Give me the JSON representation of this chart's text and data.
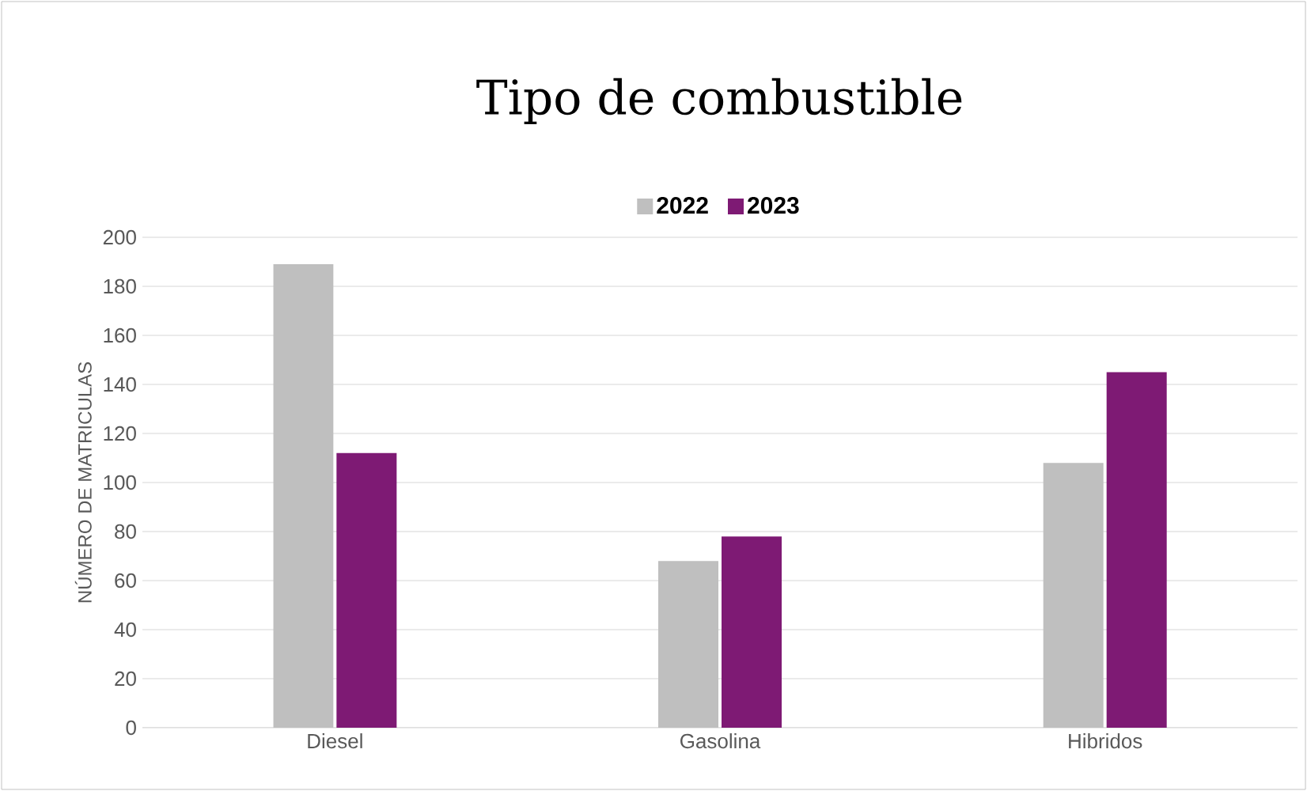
{
  "chart_data": {
    "type": "bar",
    "title": "Tipo de combustible",
    "ylabel": "NÚMERO DE MATRICULAS",
    "categories": [
      "Diesel",
      "Gasolina",
      "Hibridos"
    ],
    "series": [
      {
        "name": "2022",
        "color": "#bfbfbf",
        "values": [
          189,
          68,
          108
        ]
      },
      {
        "name": "2023",
        "color": "#7e1a74",
        "values": [
          112,
          78,
          145
        ]
      }
    ],
    "ylim": [
      0,
      200
    ],
    "yticks": [
      0,
      20,
      40,
      60,
      80,
      100,
      120,
      140,
      160,
      180,
      200
    ],
    "grid": "y",
    "legend": "top"
  }
}
